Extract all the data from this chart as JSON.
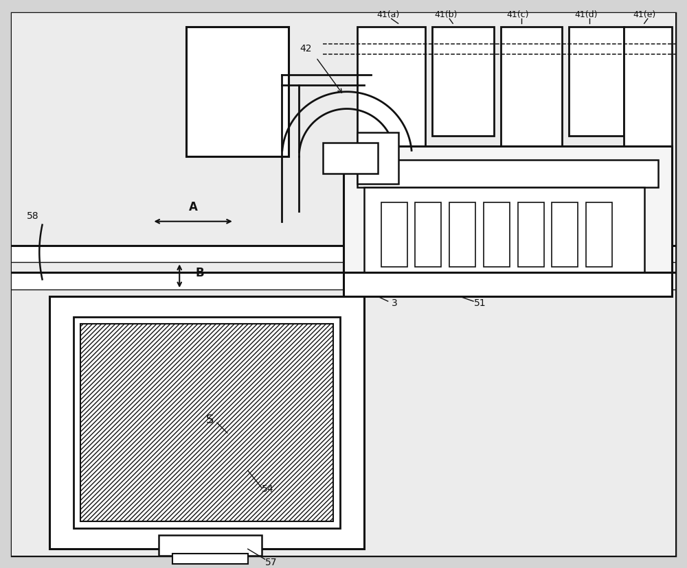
{
  "bg_color": "#d4d4d4",
  "panel_bg": "#e8e8e8",
  "white": "#ffffff",
  "line_color": "#111111",
  "fig_width": 10.0,
  "fig_height": 8.29,
  "dpi": 100,
  "labels": {
    "41a": "41(a)",
    "41b": "41(b)",
    "41c": "41(c)",
    "41d": "41(d)",
    "41e": "41(e)",
    "42": "42",
    "58": "58",
    "A": "A",
    "B": "B",
    "S": "S",
    "54": "54",
    "57": "57",
    "3": "3",
    "51": "51"
  }
}
